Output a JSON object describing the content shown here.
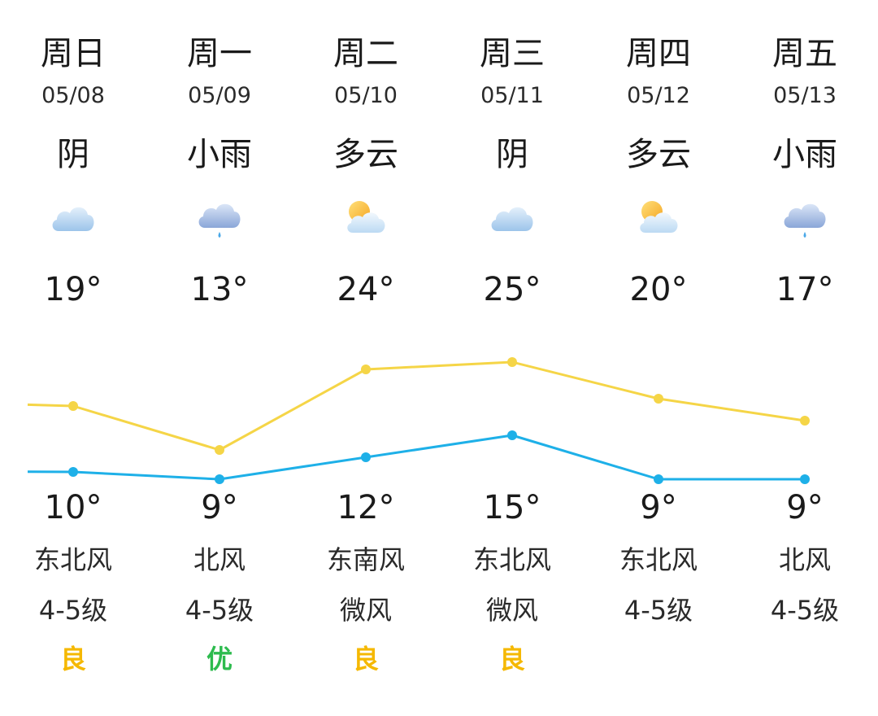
{
  "days": [
    {
      "weekday": "周日",
      "date": "05/08",
      "condition": "阴",
      "icon": "overcast-cloud-icon",
      "high": "19°",
      "low": "10°",
      "wind_dir": "东北风",
      "wind_level": "4-5级",
      "aqi": "良",
      "aqi_color": "#f5b800"
    },
    {
      "weekday": "周一",
      "date": "05/09",
      "condition": "小雨",
      "icon": "light-rain-icon",
      "high": "13°",
      "low": "9°",
      "wind_dir": "北风",
      "wind_level": "4-5级",
      "aqi": "优",
      "aqi_color": "#2dbb4e"
    },
    {
      "weekday": "周二",
      "date": "05/10",
      "condition": "多云",
      "icon": "partly-cloudy-icon",
      "high": "24°",
      "low": "12°",
      "wind_dir": "东南风",
      "wind_level": "微风",
      "aqi": "良",
      "aqi_color": "#f5b800"
    },
    {
      "weekday": "周三",
      "date": "05/11",
      "condition": "阴",
      "icon": "overcast-cloud-icon",
      "high": "25°",
      "low": "15°",
      "wind_dir": "东北风",
      "wind_level": "微风",
      "aqi": "良",
      "aqi_color": "#f5b800"
    },
    {
      "weekday": "周四",
      "date": "05/12",
      "condition": "多云",
      "icon": "partly-cloudy-icon",
      "high": "20°",
      "low": "9°",
      "wind_dir": "东北风",
      "wind_level": "4-5级",
      "aqi": "",
      "aqi_color": ""
    },
    {
      "weekday": "周五",
      "date": "05/13",
      "condition": "小雨",
      "icon": "light-rain-icon",
      "high": "17°",
      "low": "9°",
      "wind_dir": "北风",
      "wind_level": "4-5级",
      "aqi": "",
      "aqi_color": ""
    }
  ],
  "chart_data": {
    "type": "line",
    "categories": [
      "05/08",
      "05/09",
      "05/10",
      "05/11",
      "05/12",
      "05/13"
    ],
    "series": [
      {
        "values": [
          19,
          13,
          24,
          25,
          20,
          17
        ],
        "color": "#f5d547"
      },
      {
        "values": [
          10,
          9,
          12,
          15,
          9,
          9
        ],
        "color": "#1eb0e8"
      }
    ],
    "ylim": [
      0,
      27
    ],
    "grid": false,
    "legend": "none"
  }
}
